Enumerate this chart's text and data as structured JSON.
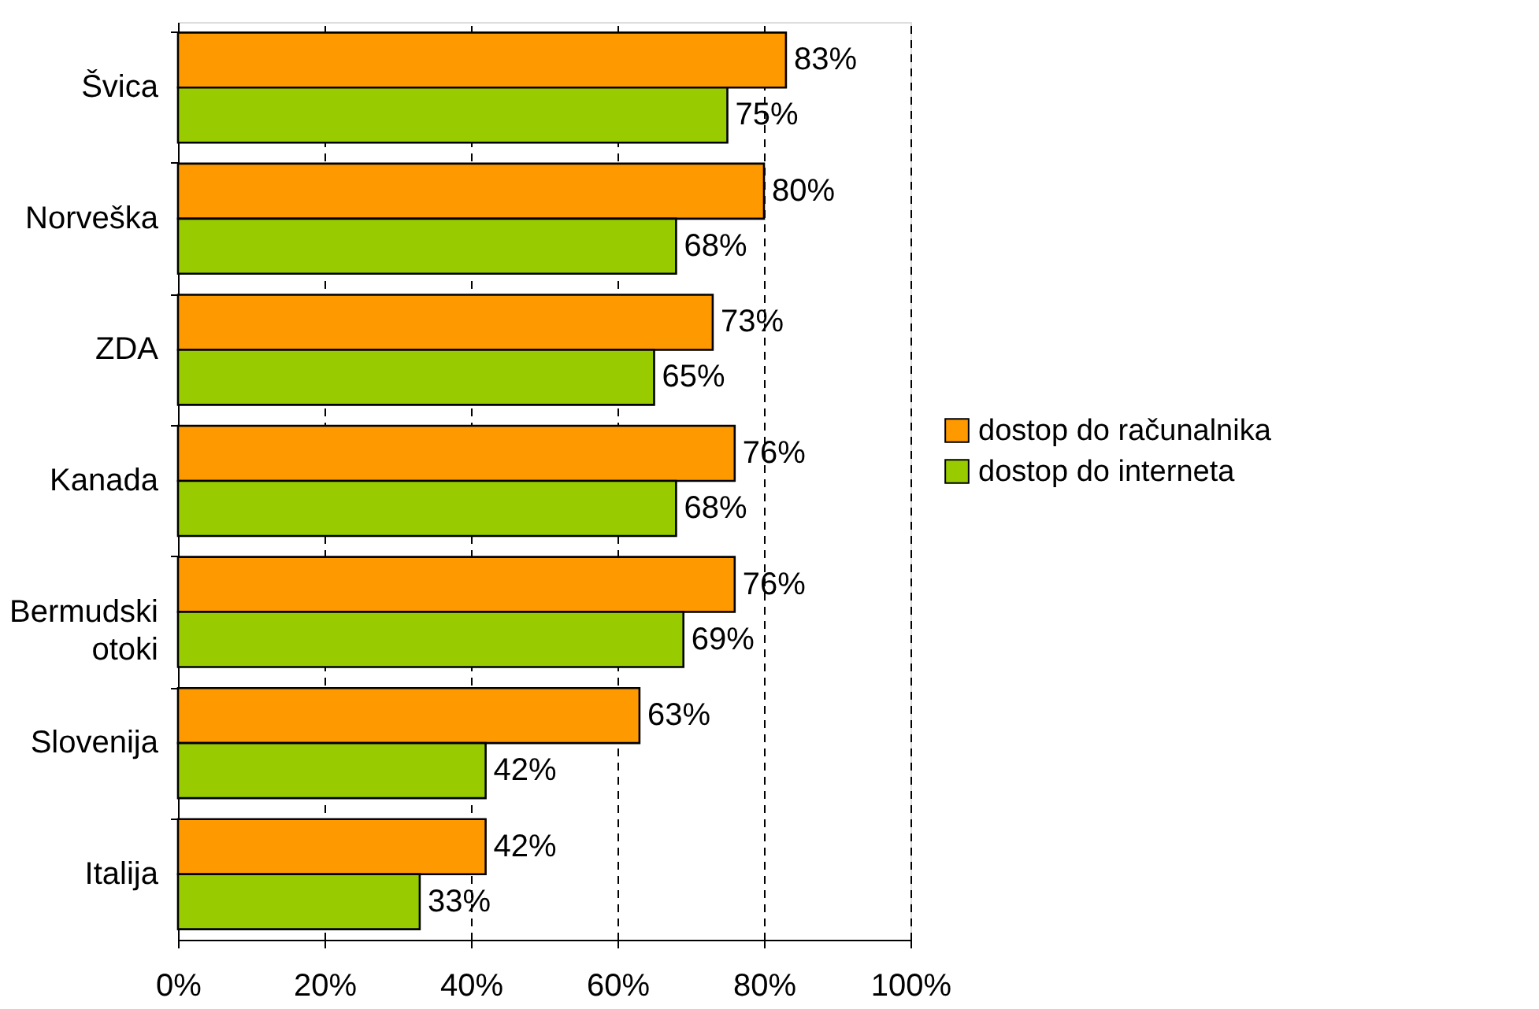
{
  "chart_data": {
    "type": "bar",
    "orientation": "horizontal",
    "categories": [
      "Švica",
      "Norveška",
      "ZDA",
      "Kanada",
      "Bermudski otoki",
      "Slovenija",
      "Italija"
    ],
    "series": [
      {
        "name": "dostop do računalnika",
        "color": "#ff9900",
        "values": [
          83,
          80,
          73,
          76,
          76,
          63,
          42
        ],
        "value_labels": [
          "83%",
          "80%",
          "73%",
          "76%",
          "76%",
          "63%",
          "42%"
        ]
      },
      {
        "name": "dostop do interneta",
        "color": "#99cc00",
        "values": [
          75,
          68,
          65,
          68,
          69,
          42,
          33
        ],
        "value_labels": [
          "75%",
          "68%",
          "65%",
          "68%",
          "69%",
          "42%",
          "33%"
        ]
      }
    ],
    "xlim": [
      0,
      100
    ],
    "xticks": [
      {
        "value": 0,
        "label": "0%"
      },
      {
        "value": 20,
        "label": "20%"
      },
      {
        "value": 40,
        "label": "40%"
      },
      {
        "value": 60,
        "label": "60%"
      },
      {
        "value": 80,
        "label": "80%"
      },
      {
        "value": 100,
        "label": "100%"
      }
    ],
    "grid": "x",
    "legend": "right"
  }
}
